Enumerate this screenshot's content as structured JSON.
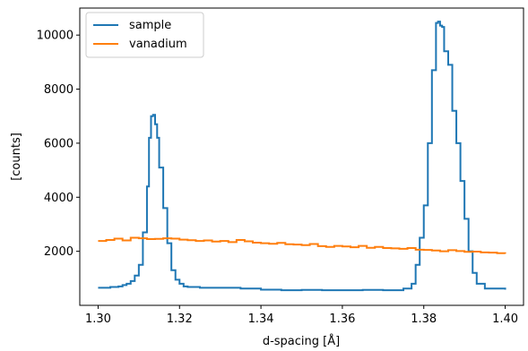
{
  "chart_data": {
    "type": "line",
    "drawstyle": "steps",
    "xlabel": "d-spacing [Å]",
    "ylabel": "[counts]",
    "xlim": [
      1.2955,
      1.4045
    ],
    "ylim": [
      0,
      11000
    ],
    "x_ticks": [
      1.3,
      1.32,
      1.34,
      1.36,
      1.38,
      1.4
    ],
    "x_tick_labels": [
      "1.30",
      "1.32",
      "1.34",
      "1.36",
      "1.38",
      "1.40"
    ],
    "y_ticks": [
      2000,
      4000,
      6000,
      8000,
      10000
    ],
    "y_tick_labels": [
      "2000",
      "4000",
      "6000",
      "8000",
      "10000"
    ],
    "grid": false,
    "legend": {
      "placement": "top-left"
    },
    "series": [
      {
        "name": "sample",
        "color": "#1f77b4",
        "x": [
          1.3,
          1.303,
          1.305,
          1.306,
          1.307,
          1.308,
          1.309,
          1.31,
          1.311,
          1.312,
          1.3125,
          1.313,
          1.3135,
          1.314,
          1.3145,
          1.315,
          1.316,
          1.317,
          1.318,
          1.319,
          1.32,
          1.321,
          1.322,
          1.325,
          1.33,
          1.335,
          1.34,
          1.345,
          1.35,
          1.355,
          1.36,
          1.365,
          1.37,
          1.375,
          1.377,
          1.378,
          1.379,
          1.38,
          1.381,
          1.382,
          1.383,
          1.3835,
          1.384,
          1.3845,
          1.385,
          1.386,
          1.387,
          1.388,
          1.389,
          1.39,
          1.391,
          1.392,
          1.393,
          1.395,
          1.4
        ],
        "values": [
          650,
          680,
          700,
          750,
          800,
          900,
          1100,
          1500,
          2700,
          4400,
          6200,
          7000,
          7050,
          6700,
          6200,
          5100,
          3600,
          2300,
          1300,
          950,
          800,
          700,
          680,
          650,
          650,
          620,
          580,
          560,
          570,
          560,
          560,
          570,
          560,
          620,
          800,
          1500,
          2500,
          3700,
          6000,
          8700,
          10450,
          10500,
          10350,
          10300,
          9400,
          8900,
          7200,
          6000,
          4600,
          3200,
          2000,
          1200,
          800,
          620,
          580
        ]
      },
      {
        "name": "vanadium",
        "color": "#ff7f0e",
        "x": [
          1.3,
          1.302,
          1.304,
          1.306,
          1.308,
          1.31,
          1.312,
          1.314,
          1.316,
          1.318,
          1.32,
          1.322,
          1.324,
          1.326,
          1.328,
          1.33,
          1.332,
          1.334,
          1.336,
          1.338,
          1.34,
          1.342,
          1.344,
          1.346,
          1.348,
          1.35,
          1.352,
          1.354,
          1.356,
          1.358,
          1.36,
          1.362,
          1.364,
          1.366,
          1.368,
          1.37,
          1.372,
          1.374,
          1.376,
          1.378,
          1.38,
          1.382,
          1.384,
          1.386,
          1.388,
          1.39,
          1.392,
          1.394,
          1.396,
          1.398,
          1.4
        ],
        "values": [
          2380,
          2420,
          2470,
          2400,
          2500,
          2480,
          2450,
          2460,
          2480,
          2470,
          2430,
          2410,
          2380,
          2400,
          2360,
          2380,
          2340,
          2420,
          2370,
          2320,
          2300,
          2280,
          2310,
          2260,
          2250,
          2230,
          2270,
          2190,
          2160,
          2200,
          2180,
          2150,
          2200,
          2130,
          2160,
          2120,
          2110,
          2090,
          2120,
          2060,
          2050,
          2030,
          2000,
          2040,
          2010,
          1980,
          1990,
          1960,
          1950,
          1930,
          1910
        ]
      }
    ]
  }
}
